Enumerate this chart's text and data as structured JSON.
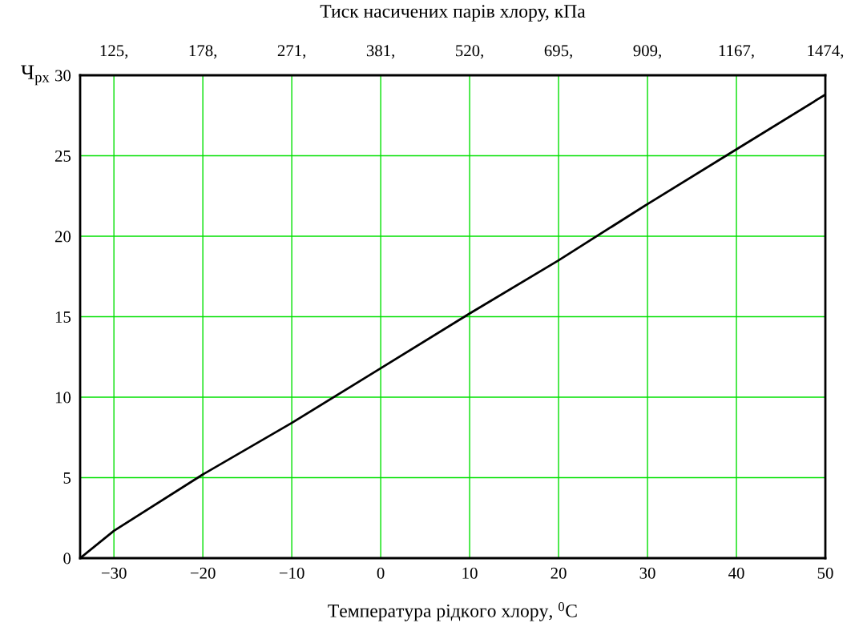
{
  "chart_data": {
    "type": "line",
    "title": "Тиск насичених парів хлору, кПа",
    "xlabel": "Температура рідкого хлору, $^{0}$C",
    "ylabel": "Ч$_{рх}$",
    "x": [
      -33.8,
      -30,
      -20,
      -10,
      0,
      10,
      20,
      30,
      40,
      50
    ],
    "series": [
      {
        "color": "#000000",
        "values": [
          0,
          1.7,
          5.2,
          8.4,
          11.8,
          15.2,
          18.5,
          22.0,
          25.4,
          28.8
        ]
      }
    ],
    "xlim": [
      -33.8,
      50
    ],
    "xticks": [
      {
        "value": -30,
        "label": "−30"
      },
      {
        "value": -20,
        "label": "−20"
      },
      {
        "value": -10,
        "label": "−10"
      },
      0,
      10,
      20,
      30,
      40,
      50
    ],
    "annotations": [
      "125,",
      "178,",
      "271,",
      "381,",
      "520,",
      "695,",
      "909,",
      "1167,",
      "1474,"
    ],
    "ylim": [
      0,
      30
    ],
    "yticks": [
      0,
      5,
      10,
      15,
      20,
      25,
      30
    ],
    "grid": true,
    "legend": false,
    "marker": "none",
    "line_style": "solid"
  }
}
